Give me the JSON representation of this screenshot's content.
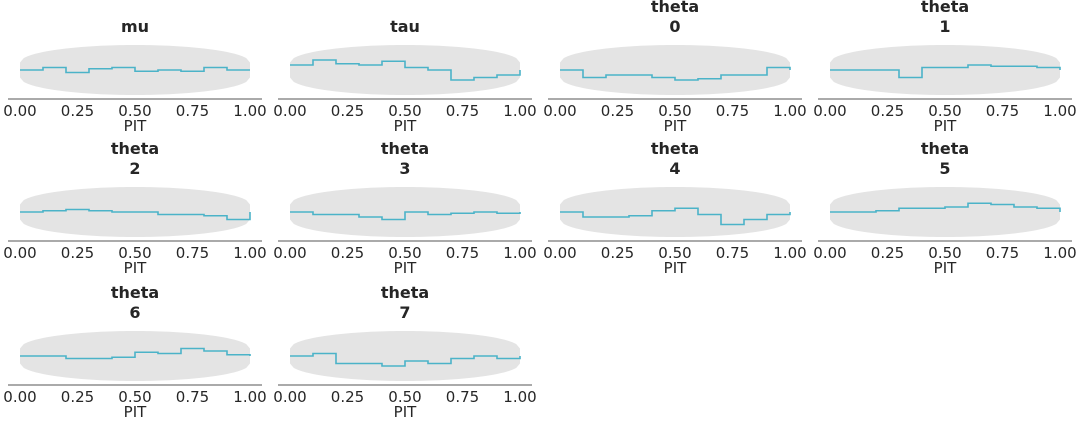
{
  "chart_data": [
    {
      "type": "line",
      "title": [
        "mu"
      ],
      "xlabel": "PIT",
      "xticks": [
        "0.00",
        "0.25",
        "0.50",
        "0.75",
        "1.00"
      ],
      "xlim": [
        0,
        1
      ],
      "x": [
        0,
        0.1,
        0.2,
        0.3,
        0.4,
        0.5,
        0.6,
        0.7,
        0.8,
        0.9,
        1.0
      ],
      "values": [
        0,
        0.1,
        -0.1,
        0.05,
        0.1,
        -0.05,
        0,
        -0.05,
        0.1,
        0,
        0
      ]
    },
    {
      "type": "line",
      "title": [
        "tau"
      ],
      "xlabel": "PIT",
      "xticks": [
        "0.00",
        "0.25",
        "0.50",
        "0.75",
        "1.00"
      ],
      "xlim": [
        0,
        1
      ],
      "x": [
        0,
        0.1,
        0.2,
        0.3,
        0.4,
        0.5,
        0.6,
        0.7,
        0.8,
        0.9,
        1.0
      ],
      "values": [
        0.2,
        0.4,
        0.25,
        0.2,
        0.35,
        0.1,
        0,
        -0.4,
        -0.3,
        -0.2,
        0
      ]
    },
    {
      "type": "line",
      "title": [
        "theta",
        "0"
      ],
      "xlabel": "PIT",
      "xticks": [
        "0.00",
        "0.25",
        "0.50",
        "0.75",
        "1.00"
      ],
      "xlim": [
        0,
        1
      ],
      "x": [
        0,
        0.1,
        0.2,
        0.3,
        0.4,
        0.5,
        0.6,
        0.7,
        0.8,
        0.9,
        1.0
      ],
      "values": [
        0,
        -0.3,
        -0.2,
        -0.2,
        -0.3,
        -0.4,
        -0.35,
        -0.2,
        -0.2,
        0.1,
        0
      ]
    },
    {
      "type": "line",
      "title": [
        "theta",
        "1"
      ],
      "xlabel": "PIT",
      "xticks": [
        "0.00",
        "0.25",
        "0.50",
        "0.75",
        "1.00"
      ],
      "xlim": [
        0,
        1
      ],
      "x": [
        0,
        0.1,
        0.2,
        0.3,
        0.4,
        0.5,
        0.6,
        0.7,
        0.8,
        0.9,
        1.0
      ],
      "values": [
        0,
        0,
        0,
        -0.3,
        0.1,
        0.1,
        0.2,
        0.15,
        0.15,
        0.1,
        0
      ]
    },
    {
      "type": "line",
      "title": [
        "theta",
        "2"
      ],
      "xlabel": "PIT",
      "xticks": [
        "0.00",
        "0.25",
        "0.50",
        "0.75",
        "1.00"
      ],
      "xlim": [
        0,
        1
      ],
      "x": [
        0,
        0.1,
        0.2,
        0.3,
        0.4,
        0.5,
        0.6,
        0.7,
        0.8,
        0.9,
        1.0
      ],
      "values": [
        0,
        0.05,
        0.1,
        0.05,
        0,
        0,
        -0.1,
        -0.1,
        -0.15,
        -0.3,
        0
      ]
    },
    {
      "type": "line",
      "title": [
        "theta",
        "3"
      ],
      "xlabel": "PIT",
      "xticks": [
        "0.00",
        "0.25",
        "0.50",
        "0.75",
        "1.00"
      ],
      "xlim": [
        0,
        1
      ],
      "x": [
        0,
        0.1,
        0.2,
        0.3,
        0.4,
        0.5,
        0.6,
        0.7,
        0.8,
        0.9,
        1.0
      ],
      "values": [
        0,
        -0.1,
        -0.1,
        -0.2,
        -0.3,
        0,
        -0.1,
        -0.05,
        0,
        -0.05,
        0
      ]
    },
    {
      "type": "line",
      "title": [
        "theta",
        "4"
      ],
      "xlabel": "PIT",
      "xticks": [
        "0.00",
        "0.25",
        "0.50",
        "0.75",
        "1.00"
      ],
      "xlim": [
        0,
        1
      ],
      "x": [
        0,
        0.1,
        0.2,
        0.3,
        0.4,
        0.5,
        0.6,
        0.7,
        0.8,
        0.9,
        1.0
      ],
      "values": [
        0,
        -0.2,
        -0.2,
        -0.15,
        0.05,
        0.15,
        -0.1,
        -0.5,
        -0.3,
        -0.1,
        0
      ]
    },
    {
      "type": "line",
      "title": [
        "theta",
        "5"
      ],
      "xlabel": "PIT",
      "xticks": [
        "0.00",
        "0.25",
        "0.50",
        "0.75",
        "1.00"
      ],
      "xlim": [
        0,
        1
      ],
      "x": [
        0,
        0.1,
        0.2,
        0.3,
        0.4,
        0.5,
        0.6,
        0.7,
        0.8,
        0.9,
        1.0
      ],
      "values": [
        0,
        0,
        0.05,
        0.15,
        0.15,
        0.2,
        0.35,
        0.3,
        0.2,
        0.15,
        0
      ]
    },
    {
      "type": "line",
      "title": [
        "theta",
        "6"
      ],
      "xlabel": "PIT",
      "xticks": [
        "0.00",
        "0.25",
        "0.50",
        "0.75",
        "1.00"
      ],
      "xlim": [
        0,
        1
      ],
      "x": [
        0,
        0.1,
        0.2,
        0.3,
        0.4,
        0.5,
        0.6,
        0.7,
        0.8,
        0.9,
        1.0
      ],
      "values": [
        0,
        0,
        -0.1,
        -0.1,
        -0.05,
        0.15,
        0.1,
        0.3,
        0.2,
        0.05,
        0
      ]
    },
    {
      "type": "line",
      "title": [
        "theta",
        "7"
      ],
      "xlabel": "PIT",
      "xticks": [
        "0.00",
        "0.25",
        "0.50",
        "0.75",
        "1.00"
      ],
      "xlim": [
        0,
        1
      ],
      "x": [
        0,
        0.1,
        0.2,
        0.3,
        0.4,
        0.5,
        0.6,
        0.7,
        0.8,
        0.9,
        1.0
      ],
      "values": [
        0,
        0.1,
        -0.3,
        -0.3,
        -0.4,
        -0.2,
        -0.3,
        -0.1,
        0,
        -0.1,
        0
      ]
    }
  ],
  "colors": {
    "line": "#4bb3c8",
    "band": "#e4e4e4",
    "axis": "#555555"
  }
}
